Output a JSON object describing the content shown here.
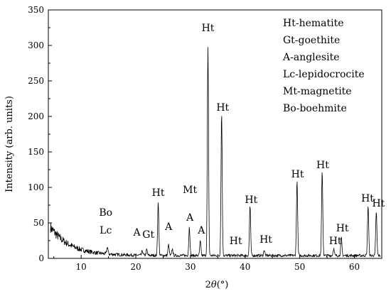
{
  "chart_data": {
    "type": "line",
    "xlabel_prefix": "2",
    "xlabel_symbol": "θ",
    "xlabel_unit": "(°)",
    "ylabel": "Intensity (arb. units)",
    "xlim": [
      4,
      65
    ],
    "ylim": [
      0,
      350
    ],
    "x_ticks": [
      10,
      20,
      30,
      40,
      50,
      60
    ],
    "y_ticks": [
      0,
      50,
      100,
      150,
      200,
      250,
      300,
      350
    ],
    "grid": false,
    "legend_position": "top-right",
    "legend": [
      "Ht-hematite",
      "Gt-goethite",
      "A-anglesite",
      "Lc-lepidocrocite",
      "Mt-magnetite",
      "Bo-boehmite"
    ],
    "peaks": [
      {
        "x": 14.8,
        "y": 10
      },
      {
        "x": 21.2,
        "y": 6
      },
      {
        "x": 22.0,
        "y": 8
      },
      {
        "x": 24.1,
        "y": 75
      },
      {
        "x": 26.0,
        "y": 15
      },
      {
        "x": 26.7,
        "y": 9
      },
      {
        "x": 29.8,
        "y": 40
      },
      {
        "x": 31.8,
        "y": 20
      },
      {
        "x": 33.2,
        "y": 292
      },
      {
        "x": 35.7,
        "y": 200
      },
      {
        "x": 40.9,
        "y": 70
      },
      {
        "x": 43.5,
        "y": 8
      },
      {
        "x": 49.5,
        "y": 104
      },
      {
        "x": 54.1,
        "y": 117
      },
      {
        "x": 56.2,
        "y": 10
      },
      {
        "x": 57.6,
        "y": 25
      },
      {
        "x": 62.5,
        "y": 70
      },
      {
        "x": 64.0,
        "y": 62
      }
    ],
    "annotations": [
      {
        "text": "Bo",
        "x": 14.5,
        "y": 60
      },
      {
        "text": "Lc",
        "x": 14.5,
        "y": 35
      },
      {
        "text": "A",
        "x": 20.2,
        "y": 32
      },
      {
        "text": "Gt",
        "x": 22.3,
        "y": 29
      },
      {
        "text": "Ht",
        "x": 24.1,
        "y": 88
      },
      {
        "text": "A",
        "x": 26.0,
        "y": 40
      },
      {
        "text": "Mt",
        "x": 29.9,
        "y": 92
      },
      {
        "text": "A",
        "x": 29.9,
        "y": 53
      },
      {
        "text": "A",
        "x": 32.0,
        "y": 35
      },
      {
        "text": "Ht",
        "x": 33.2,
        "y": 320
      },
      {
        "text": "Ht",
        "x": 35.9,
        "y": 208
      },
      {
        "text": "Ht",
        "x": 38.3,
        "y": 20
      },
      {
        "text": "Ht",
        "x": 41.1,
        "y": 78
      },
      {
        "text": "Ht",
        "x": 43.8,
        "y": 22
      },
      {
        "text": "Ht",
        "x": 49.6,
        "y": 114
      },
      {
        "text": "Ht",
        "x": 54.2,
        "y": 127
      },
      {
        "text": "Ht",
        "x": 56.5,
        "y": 20
      },
      {
        "text": "Ht",
        "x": 57.8,
        "y": 38
      },
      {
        "text": "Ht",
        "x": 62.4,
        "y": 80
      },
      {
        "text": "Ht",
        "x": 64.4,
        "y": 73
      }
    ]
  }
}
